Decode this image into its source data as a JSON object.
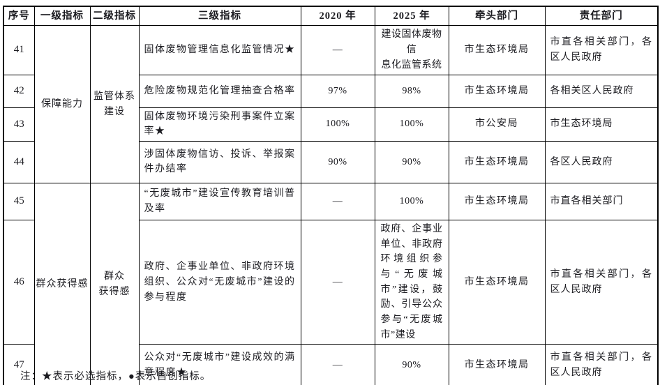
{
  "table": {
    "headers": {
      "no": "序号",
      "level1": "一级指标",
      "level2": "二级指标",
      "level3": "三级指标",
      "y2020": "2020 年",
      "y2025": "2025 年",
      "lead": "牵头部门",
      "resp": "责任部门"
    },
    "groups": [
      {
        "level1": "保障能力",
        "level2": "监管体系\n建设"
      },
      {
        "level1": "群众获得感",
        "level2": "群众\n获得感"
      }
    ],
    "rows": [
      {
        "no": "41",
        "level3": "固体废物管理信息化监管情况★",
        "y2020": "—",
        "y2025": "建设固体废物信\n息化监管系统",
        "lead": "市生态环境局",
        "resp": "市直各相关部门，各区人民政府"
      },
      {
        "no": "42",
        "level3": "危险废物规范化管理抽查合格率",
        "y2020": "97%",
        "y2025": "98%",
        "lead": "市生态环境局",
        "resp": "各相关区人民政府"
      },
      {
        "no": "43",
        "level3": "固体废物环境污染刑事案件立案率★",
        "y2020": "100%",
        "y2025": "100%",
        "lead": "市公安局",
        "resp": "市生态环境局"
      },
      {
        "no": "44",
        "level3": "涉固体废物信访、投诉、举报案件办结率",
        "y2020": "90%",
        "y2025": "90%",
        "lead": "市生态环境局",
        "resp": "各区人民政府"
      },
      {
        "no": "45",
        "level3": "“无废城市”建设宣传教育培训普及率",
        "y2020": "—",
        "y2025": "100%",
        "lead": "市生态环境局",
        "resp": "市直各相关部门"
      },
      {
        "no": "46",
        "level3": "政府、企事业单位、非政府环境组织、公众对“无废城市”建设的参与程度",
        "y2020": "—",
        "y2025": "政府、企事业单位、非政府环境组织参与“无废城市”建设，鼓励、引导公众参与“无废城市”建设",
        "lead": "市生态环境局",
        "resp": "市直各相关部门，各区人民政府"
      },
      {
        "no": "47",
        "level3": "公众对“无废城市”建设成效的满意程度★",
        "y2020": "—",
        "y2025": "90%",
        "lead": "市生态环境局",
        "resp": "市直各相关部门，各区人民政府"
      }
    ]
  },
  "footnote": "注：★表示必选指标，●表示自创指标。",
  "colors": {
    "text": "#1b1b20",
    "border": "#000000",
    "background": "#ffffff"
  },
  "symbols": {
    "required_indicator": "★",
    "self_created_indicator": "●",
    "empty_value": "—"
  }
}
